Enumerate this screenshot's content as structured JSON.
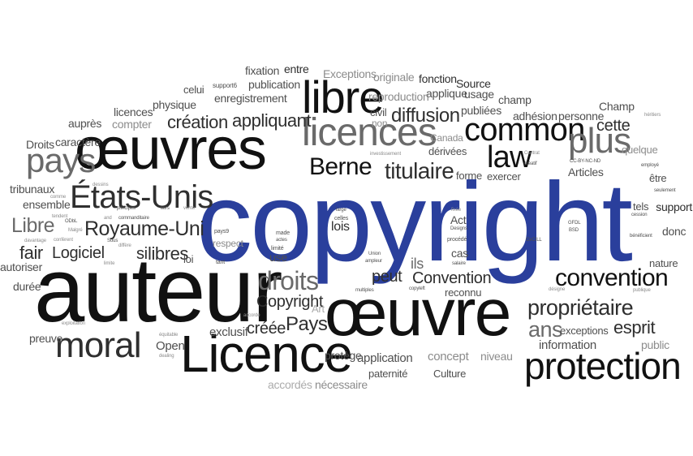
{
  "words": {
    "copyright": "copyright",
    "auteur": "auteur",
    "oeuvres": "œuvres",
    "oeuvre": "œuvre",
    "licence_big": "Licence",
    "protection": "protection",
    "licences": "licences",
    "libre": "libre",
    "etats_unis": "États-Unis",
    "moral": "moral",
    "common": "common",
    "law": "law",
    "plus": "plus",
    "pays": "pays",
    "berne": "Berne",
    "titulaire": "titulaire",
    "royaume_uni": "Royaume-Uni",
    "droits": "droits",
    "convention": "convention",
    "convention2": "Convention",
    "proprietaire": "propriétaire",
    "copyright2": "Copyright",
    "pays2": "Pays",
    "creee": "créée",
    "libre2": "Libre",
    "logiciel": "Logiciel",
    "fair": "fair",
    "si": "si",
    "libres": "libres",
    "ans": "ans",
    "esprit": "esprit",
    "diffusion": "diffusion",
    "creation": "création",
    "appliquant": "appliquant",
    "cette": "cette",
    "peut": "peut",
    "lois": "lois",
    "ils": "ils",
    "exclusif": "exclusif",
    "open": "Open",
    "protege": "protège",
    "application": "application",
    "paternite": "paternité",
    "culture": "Culture",
    "concept": "concept",
    "necessaire": "nécessaire",
    "accordes": "accordés",
    "niveau": "niveau",
    "information": "information",
    "exceptions": "exceptions",
    "public": "public",
    "nature": "nature",
    "donc": "donc",
    "support": "support",
    "tels": "tels",
    "etre": "être",
    "quelque": "quelque",
    "articles": "Articles",
    "champ_cap": "Champ",
    "champ": "champ",
    "personne": "personne",
    "adhesion": "adhésion",
    "publiees": "publiées",
    "source": "Source",
    "usage": "usage",
    "applique": "applique",
    "fonction": "fonction",
    "originale": "originale",
    "exceptions2": "Exceptions",
    "reproduction": "reproduction",
    "entre": "entre",
    "fixation": "fixation",
    "publication": "publication",
    "enregistrement": "enregistrement",
    "celui": "celui",
    "support6": "support6",
    "physique": "physique",
    "licences_small": "licences",
    "compter": "compter",
    "aupres": "auprès",
    "droits_cap": "Droits",
    "caractere": "caractère",
    "tribunaux": "tribunaux",
    "ensemble": "ensemble",
    "autoriser": "autoriser",
    "duree": "durée",
    "preuve": "preuve",
    "exploitation": "exploitation",
    "equitable": "équitable",
    "dealing": "dealing",
    "accorde": "accorde",
    "art": "Art",
    "made": "made",
    "actes": "actes",
    "limite": "limité",
    "use": "use",
    "respect": "respect",
    "tant": "tant",
    "pays9": "pays9",
    "loi": "loi",
    "celles": "celles",
    "large": "large",
    "fixee": "fixée",
    "act": "Act",
    "designs": "Designs",
    "procede": "procédé",
    "cas": "cas",
    "salaire": "salaire",
    "reconnu": "reconnu",
    "multiples": "multiples",
    "union": "Union",
    "ampleur": "ampleur",
    "copyleft": "copyleft",
    "canada": "Canada",
    "derivees": "dérivées",
    "forme": "forme",
    "exercer": "exercer",
    "contrat": "Contrat",
    "creatif": "créatif",
    "ccbyncnd": "CC-BY-NC-ND",
    "heritiers": "héritiers",
    "employe": "employé",
    "seulement": "seulement",
    "cession": "cession",
    "beneficient": "bénéficient",
    "gfdl": "GFDL",
    "bsd": "BSD",
    "cecill": "CeCILL",
    "designe": "désigne",
    "publique": "publique",
    "civil": "civil",
    "non": "non",
    "investissement": "investissement",
    "dessins": "dessins",
    "comme": "comme",
    "tendent": "tendent",
    "davantage": "davantage",
    "conferent": "confèrent",
    "odbl": "ODbL",
    "malgre": "Malgré",
    "and": "and",
    "commanditaire": "commanditaire",
    "principes": "principes",
    "tiers": "tiers",
    "vente": "vente",
    "sous": "Sous",
    "differe": "diffère",
    "limite2": "limite"
  }
}
